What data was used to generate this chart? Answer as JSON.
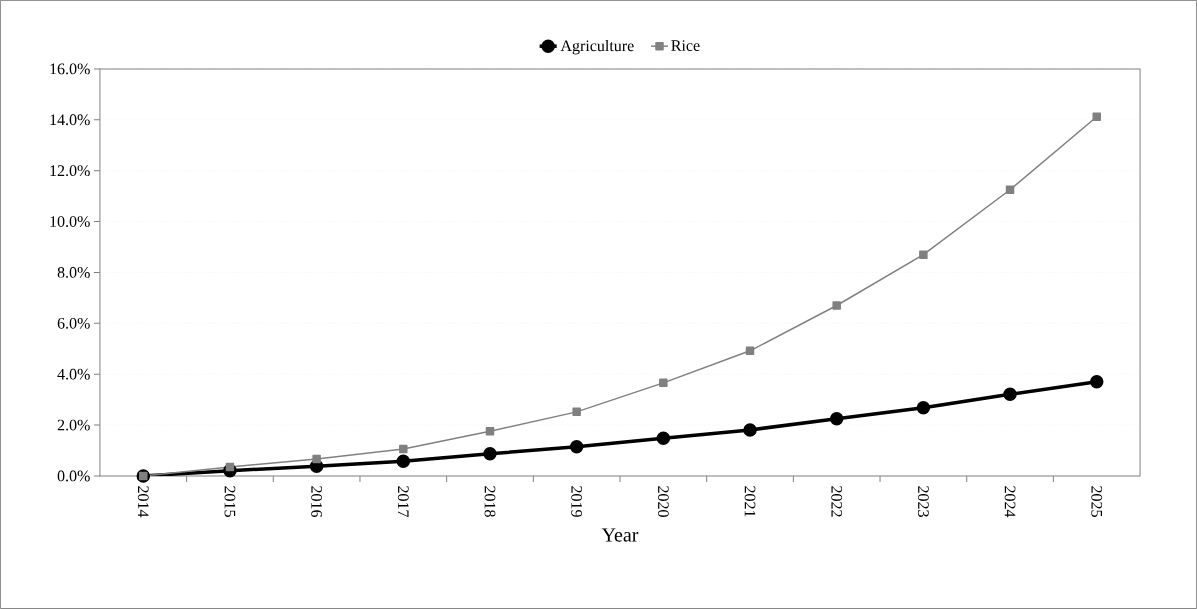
{
  "chart_data": {
    "type": "line",
    "xlabel": "Year",
    "categories": [
      "2014",
      "2015",
      "2016",
      "2017",
      "2018",
      "2019",
      "2020",
      "2021",
      "2022",
      "2023",
      "2024",
      "2025"
    ],
    "series": [
      {
        "name": "Agriculture",
        "color": "#000000",
        "marker": "circle",
        "values": [
          0.0,
          0.21,
          0.38,
          0.58,
          0.87,
          1.15,
          1.48,
          1.81,
          2.25,
          2.68,
          3.21,
          3.7
        ]
      },
      {
        "name": "Rice",
        "color": "#808080",
        "marker": "square",
        "values": [
          0.0,
          0.35,
          0.67,
          1.06,
          1.76,
          2.52,
          3.66,
          4.92,
          6.7,
          8.7,
          11.25,
          14.12
        ]
      }
    ],
    "ylim": [
      0,
      16
    ],
    "yticks": [
      {
        "value": 0,
        "label": "0.0%"
      },
      {
        "value": 2,
        "label": "2.0%"
      },
      {
        "value": 4,
        "label": "4.0%"
      },
      {
        "value": 6,
        "label": "6.0%"
      },
      {
        "value": 8,
        "label": "8.0%"
      },
      {
        "value": 10,
        "label": "10.0%"
      },
      {
        "value": 12,
        "label": "12.0%"
      },
      {
        "value": 14,
        "label": "14.0%"
      },
      {
        "value": 16,
        "label": "16.0%"
      }
    ],
    "grid": "y",
    "legend": "top",
    "line_style": "solid"
  }
}
